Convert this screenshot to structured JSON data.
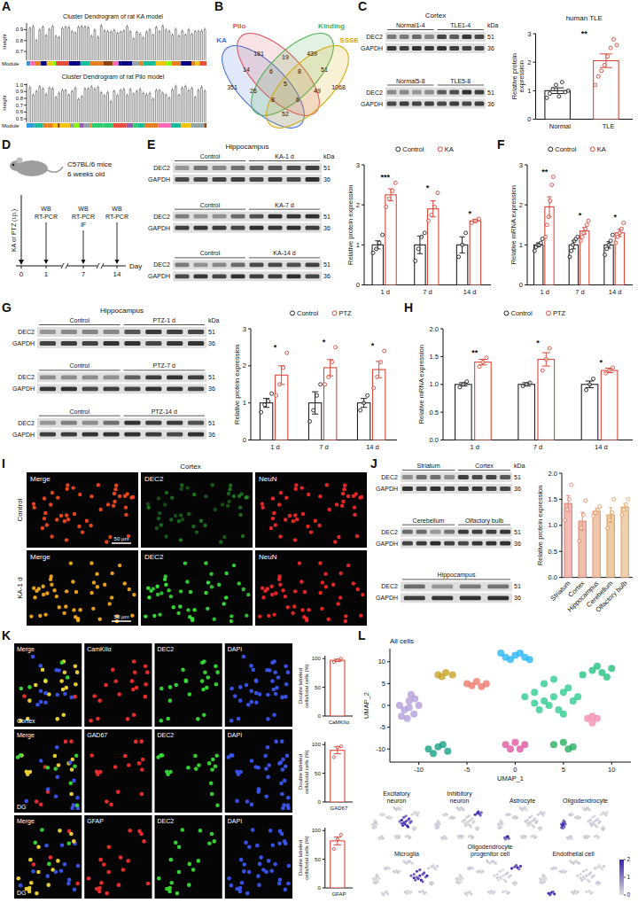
{
  "panel_labels": [
    "A",
    "B",
    "C",
    "D",
    "E",
    "F",
    "G",
    "H",
    "I",
    "J",
    "K",
    "L"
  ],
  "dendrograms": [
    {
      "title": "Cluster Dendrogram of rat KA model",
      "ylabel": "Height",
      "module": "Module",
      "ylim": [
        0.62,
        0.96
      ],
      "yticks": [
        0.7,
        0.8,
        0.9
      ]
    },
    {
      "title": "Cluster Dendrogram of rat Pilo model",
      "ylabel": "Height",
      "module": "Module",
      "ylim": [
        0.45,
        1.02
      ],
      "yticks": [
        0.5,
        0.6,
        0.7,
        0.8,
        0.9,
        {
          "value": 1,
          "label": "1.0"
        }
      ]
    }
  ],
  "venn": {
    "sets": [
      "KA",
      "Pilo",
      "Kinding",
      "SSSE"
    ],
    "counts": [
      181,
      439,
      14,
      19,
      51,
      351,
      6,
      8,
      1068,
      26,
      5,
      49,
      8,
      6,
      52
    ]
  },
  "blots": [
    {
      "tissue": "Cortex",
      "unit": "kDa",
      "proteins": [
        "DEC2",
        "GAPDH"
      ],
      "kda": [
        51,
        36
      ],
      "panels": [
        [
          "Normal1-4",
          "TLE1-4"
        ],
        [
          "Normal5-8",
          "TLE5-8"
        ]
      ]
    },
    {
      "tissue": "Hippocampus",
      "unit": "kDa",
      "proteins": [
        "DEC2",
        "GAPDH"
      ],
      "kda": [
        51,
        36
      ],
      "panels": [
        [
          "Control",
          "KA-1 d"
        ],
        [
          "Control",
          "KA-7 d"
        ],
        [
          "Control",
          "KA-14 d"
        ]
      ]
    },
    {
      "tissue": "Hippocampus",
      "unit": "kDa",
      "proteins": [
        "DEC2",
        "GAPDH"
      ],
      "kda": [
        51,
        36
      ],
      "panels": [
        [
          "Control",
          "PTZ-1 d"
        ],
        [
          "Control",
          "PTZ-7 d"
        ],
        [
          "Control",
          "PTZ-14 d"
        ]
      ]
    },
    {
      "unit": "kDa",
      "proteins": [
        "DEC2",
        "GAPDH"
      ],
      "kda": [
        51,
        36
      ],
      "panels": [
        [
          "Striatum",
          "Cortex"
        ],
        [
          "Cerebellum",
          "Olfactory bulb"
        ],
        [
          "Hippocampus"
        ]
      ]
    }
  ],
  "timeline": {
    "title": "C57BL/6 mice",
    "subtitle": "6 weeks old",
    "treatment": "KA or PTZ (i.p.)",
    "unit": "Day",
    "days": [
      0,
      1,
      7,
      14
    ],
    "assays": [
      [],
      [
        "WB",
        "RT-PCR"
      ],
      [
        "WB",
        "RT-PCR",
        "IF"
      ],
      [
        "WB",
        "RT-PCR"
      ]
    ]
  },
  "images": [
    {
      "tissue": "Cortex",
      "columns": [
        "Merge",
        "DEC2",
        "NeuN"
      ],
      "rows": [
        "Control",
        "KA-1 d"
      ],
      "scale": "50 μm"
    },
    {
      "rows": [
        {
          "tissue": "Cortex",
          "columns": [
            "Merge",
            "CamKIIα",
            "DEC2",
            "DAPI"
          ]
        },
        {
          "tissue": "DG",
          "columns": [
            "Merge",
            "GAD67",
            "DEC2",
            "DAPI"
          ]
        },
        {
          "tissue": "DG",
          "columns": [
            "Merge",
            "GFAP",
            "DEC2",
            "DAPI"
          ]
        }
      ]
    }
  ],
  "chart_data": [
    {
      "type": "bar",
      "title": "human TLE",
      "categories": [
        "Normal",
        "TLE"
      ],
      "ylabel": "Relative protein expression",
      "ylim": [
        0,
        3
      ],
      "yticks": [
        0,
        1,
        2,
        3
      ],
      "colors": [
        "#222222",
        "#d9483b"
      ],
      "series": [
        {
          "values": [
            1.0,
            2.05
          ],
          "errors": [
            0.1,
            0.24
          ],
          "points": [
            [
              0.75,
              0.9,
              1.05,
              1.2,
              0.8,
              1.3,
              0.95,
              1.0
            ],
            [
              1.2,
              1.5,
              1.7,
              1.9,
              2.2,
              2.5,
              2.8,
              2.6
            ]
          ]
        }
      ],
      "annotations": [
        "**"
      ]
    },
    {
      "type": "bar",
      "categories": [
        "1 d",
        "7 d",
        "14 d"
      ],
      "ylabel": "Relative protein expression",
      "ylim": [
        0,
        3
      ],
      "yticks": [
        0,
        1,
        2,
        3
      ],
      "legend": "top",
      "series": [
        {
          "name": "Control",
          "color": "#222222",
          "values": [
            1,
            1,
            1
          ],
          "errors": [
            0.1,
            0.22,
            0.2
          ],
          "points": [
            [
              0.8,
              0.9,
              1.05,
              1.25
            ],
            [
              0.6,
              0.9,
              1.2,
              1.3
            ],
            [
              0.7,
              1.0,
              1.3
            ]
          ]
        },
        {
          "name": "KA",
          "color": "#d9483b",
          "values": [
            2.25,
            1.9,
            1.6
          ],
          "errors": [
            0.15,
            0.2,
            0.04
          ],
          "points": [
            [
              1.95,
              2.15,
              2.35,
              2.55
            ],
            [
              1.6,
              1.75,
              1.95,
              2.3
            ],
            [
              1.55,
              1.6,
              1.65
            ]
          ]
        }
      ],
      "annotations": [
        "***",
        "*",
        "*"
      ]
    },
    {
      "type": "bar",
      "categories": [
        "1 d",
        "7 d",
        "14 d"
      ],
      "ylabel": "Relative mRNA expression",
      "ylim": [
        0,
        3
      ],
      "yticks": [
        0,
        1,
        2,
        3
      ],
      "legend": "top",
      "series": [
        {
          "name": "Control",
          "color": "#222222",
          "values": [
            1,
            1,
            1
          ],
          "errors": [
            0.05,
            0.1,
            0.08
          ],
          "points": [
            [
              0.85,
              0.95,
              1.0,
              1.0,
              1.05,
              1.15
            ],
            [
              0.7,
              0.85,
              1.0,
              1.1,
              1.15,
              1.2
            ],
            [
              0.75,
              0.9,
              1.0,
              1.1,
              1.25
            ]
          ]
        },
        {
          "name": "KA",
          "color": "#d9483b",
          "values": [
            1.95,
            1.35,
            1.3
          ],
          "errors": [
            0.25,
            0.08,
            0.09
          ],
          "points": [
            [
              1.2,
              1.5,
              1.7,
              2.1,
              2.5,
              2.7
            ],
            [
              1.1,
              1.2,
              1.3,
              1.4,
              1.5,
              1.6
            ],
            [
              1.05,
              1.2,
              1.3,
              1.4,
              1.55
            ]
          ]
        }
      ],
      "annotations": [
        "**",
        "*",
        "*"
      ]
    },
    {
      "type": "bar",
      "categories": [
        "1 d",
        "7 d",
        "14 d"
      ],
      "ylabel": "Relative protein expression",
      "ylim": [
        0,
        3
      ],
      "yticks": [
        0,
        1,
        2,
        3
      ],
      "legend": "top",
      "series": [
        {
          "name": "Control",
          "color": "#222222",
          "values": [
            1,
            1,
            1
          ],
          "errors": [
            0.12,
            0.3,
            0.12
          ],
          "points": [
            [
              0.75,
              0.95,
              1.05,
              1.25
            ],
            [
              0.5,
              0.8,
              1.2,
              1.5
            ],
            [
              0.8,
              1.0,
              1.2
            ]
          ]
        },
        {
          "name": "PTZ",
          "color": "#d9483b",
          "values": [
            1.75,
            1.95,
            1.9
          ],
          "errors": [
            0.25,
            0.22,
            0.22
          ],
          "points": [
            [
              1.2,
              1.5,
              1.95,
              2.35
            ],
            [
              1.5,
              1.7,
              2.1,
              2.5
            ],
            [
              1.4,
              1.7,
              2.1,
              2.4
            ]
          ]
        }
      ],
      "annotations": [
        "*",
        "*",
        "*"
      ]
    },
    {
      "type": "bar",
      "categories": [
        "1 d",
        "7 d",
        "14 d"
      ],
      "ylabel": "Relative mRNA expression",
      "ylim": [
        0,
        2
      ],
      "yticks": [
        {
          "value": 0,
          "label": "0.0"
        },
        0.5,
        {
          "value": 1,
          "label": "1.0"
        },
        1.5,
        {
          "value": 2,
          "label": "2.0"
        }
      ],
      "legend": "top",
      "series": [
        {
          "name": "Control",
          "color": "#222222",
          "values": [
            1,
            1,
            1
          ],
          "errors": [
            0.03,
            0.03,
            0.06
          ],
          "points": [
            [
              0.95,
              1.0,
              1.05
            ],
            [
              0.97,
              1.0,
              1.03
            ],
            [
              0.9,
              1.0,
              1.1
            ]
          ]
        },
        {
          "name": "PTZ",
          "color": "#d9483b",
          "values": [
            1.4,
            1.45,
            1.25
          ],
          "errors": [
            0.05,
            0.12,
            0.04
          ],
          "points": [
            [
              1.32,
              1.4,
              1.48
            ],
            [
              1.25,
              1.45,
              1.65
            ],
            [
              1.2,
              1.25,
              1.3
            ]
          ]
        }
      ],
      "annotations": [
        "**",
        "*",
        "*"
      ]
    },
    {
      "type": "bar",
      "categories": [
        "Striatum",
        "Cortex",
        "Hippocampus",
        "Cerebellum",
        "Olfactory bulb"
      ],
      "ylabel": "Relative protein expression",
      "ylim": [
        0,
        2
      ],
      "yticks": [
        {
          "value": 0,
          "label": "0.0"
        },
        0.5,
        {
          "value": 1,
          "label": "1.0"
        },
        1.5,
        {
          "value": 2,
          "label": "2.0"
        }
      ],
      "colors": [
        "#e8837a",
        "#e58a6f",
        "#e6996b",
        "#dea15e",
        "#e2a86a"
      ],
      "series": [
        {
          "values": [
            1.42,
            1.08,
            1.27,
            1.2,
            1.35
          ],
          "errors": [
            0.15,
            0.17,
            0.05,
            0.14,
            0.07
          ],
          "points": [
            [
              1.1,
              1.3,
              1.5,
              1.78
            ],
            [
              0.7,
              0.95,
              1.2,
              1.47
            ],
            [
              1.18,
              1.24,
              1.3,
              1.36
            ],
            [
              0.95,
              1.1,
              1.25,
              1.5
            ],
            [
              1.2,
              1.3,
              1.4,
              1.5
            ]
          ]
        }
      ]
    },
    {
      "type": "bar",
      "categories": [
        "CaMKIIα"
      ],
      "ylabel": "Double labeled cells/total cells (%)",
      "ylim": [
        0,
        105
      ],
      "yticks": [
        0,
        50,
        100
      ],
      "series": [
        {
          "color": "#d9483b",
          "values": [
            97
          ],
          "errors": [
            2
          ],
          "points": [
            [
              94,
              97,
              100
            ]
          ]
        }
      ]
    },
    {
      "type": "bar",
      "categories": [
        "GAD67"
      ],
      "ylabel": "Double labeled cells/total cells (%)",
      "ylim": [
        0,
        105
      ],
      "yticks": [
        0,
        50,
        100
      ],
      "series": [
        {
          "color": "#d9483b",
          "values": [
            90
          ],
          "errors": [
            6
          ],
          "points": [
            [
              78,
              95,
              97
            ]
          ]
        }
      ]
    },
    {
      "type": "bar",
      "categories": [
        "GFAP"
      ],
      "ylabel": "Double labeled cells/total cells (%)",
      "ylim": [
        0,
        105
      ],
      "yticks": [
        0,
        50,
        100
      ],
      "series": [
        {
          "color": "#d9483b",
          "values": [
            82
          ],
          "errors": [
            7
          ],
          "points": [
            [
              68,
              85,
              93
            ]
          ]
        }
      ]
    },
    {
      "type": "scatter",
      "title": "All cells",
      "xlabel": "UMAP_1",
      "ylabel": "UMAP_2",
      "xlim": [
        -13,
        12
      ],
      "ylim": [
        -13,
        13
      ],
      "xticks": [
        -10,
        -5,
        0,
        5,
        10
      ],
      "yticks": [
        -10,
        -5,
        0,
        5,
        10
      ],
      "series": [
        {
          "color": "#b39ddb",
          "x": [
            -12,
            -11.5,
            -11,
            -10.5,
            -10,
            -11.8,
            -11.2,
            -10.4,
            -11,
            -10.8
          ],
          "y": [
            0,
            -1,
            1,
            -2,
            0,
            -2.5,
            -3,
            1.5,
            -0.5,
            2.5
          ]
        },
        {
          "color": "#29b6f6",
          "x": [
            -1,
            0,
            1,
            -0.5,
            0.5,
            1.5,
            -1.5
          ],
          "y": [
            11,
            11.5,
            11,
            10.5,
            12,
            10.5,
            12
          ]
        },
        {
          "color": "#c9a227",
          "x": [
            -8,
            -7.2,
            -6.5,
            -7.6
          ],
          "y": [
            7,
            7.5,
            7,
            6.6
          ]
        },
        {
          "color": "#f07a6a",
          "x": [
            -5,
            -4,
            -3,
            -4.5,
            -3.5
          ],
          "y": [
            5,
            5.5,
            5,
            4.5,
            4.3
          ]
        },
        {
          "color": "#2ecc8f",
          "x": [
            1,
            2,
            3,
            4,
            5,
            6,
            2.5,
            3.5,
            4.5,
            5.5,
            3,
            4,
            6.5,
            2,
            5
          ],
          "y": [
            2,
            3,
            1,
            2,
            3,
            1,
            -1,
            0,
            -1,
            4,
            5,
            6,
            2,
            0.5,
            -2
          ]
        },
        {
          "color": "#26c281",
          "x": [
            7,
            8,
            9,
            10,
            8.5,
            9.5
          ],
          "y": [
            7,
            8,
            7.5,
            8.5,
            9,
            6.5
          ]
        },
        {
          "color": "#16a085",
          "x": [
            -9,
            -8,
            -7,
            -8.5,
            -7.5
          ],
          "y": [
            -10,
            -9.5,
            -10.5,
            -11,
            -9
          ]
        },
        {
          "color": "#e056a0",
          "x": [
            -1,
            0,
            1,
            0.5,
            -0.5
          ],
          "y": [
            -9,
            -8.5,
            -9,
            -10,
            -10
          ]
        },
        {
          "color": "#27ae60",
          "x": [
            4,
            5,
            6,
            5.5
          ],
          "y": [
            -9,
            -8.5,
            -9.5,
            -10
          ]
        },
        {
          "color": "#f48fb1",
          "x": [
            7.5,
            8,
            8.5,
            8
          ],
          "y": [
            -3,
            -2.5,
            -3,
            -4
          ]
        }
      ],
      "feature_titles": [
        "Excitatory neuron",
        "Inhibitory neuron",
        "Astrocyte",
        "Oligodendrocyte",
        "Microglia",
        "Oligodendrocyte progenitor cell",
        "Endothelial cell"
      ],
      "colorbar": {
        "range": [
          0,
          2
        ],
        "ticks": [
          0,
          1,
          2
        ]
      }
    }
  ]
}
